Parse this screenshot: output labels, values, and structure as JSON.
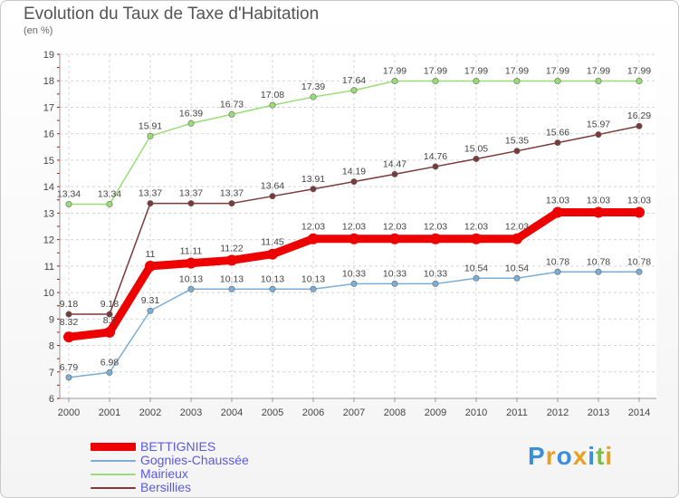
{
  "header": {
    "title": "Evolution du Taux de Taxe d'Habitation",
    "subtitle": "(en %)"
  },
  "logo": {
    "letters": [
      "P",
      "r",
      "o",
      "x",
      "i",
      "t",
      "i"
    ],
    "colors": [
      "#3a8fd8",
      "#e8a020",
      "#3a8fd8",
      "#e8a020",
      "#3a8fd8",
      "#7ac043",
      "#e8a020"
    ]
  },
  "chart_data": {
    "type": "line",
    "x": [
      "2000",
      "2001",
      "2002",
      "2003",
      "2004",
      "2005",
      "2006",
      "2007",
      "2008",
      "2009",
      "2010",
      "2011",
      "2012",
      "2013",
      "2014"
    ],
    "ylim": [
      6,
      19
    ],
    "yticks": [
      "6",
      "7",
      "8",
      "9",
      "10",
      "11",
      "12",
      "13",
      "14",
      "15",
      "16",
      "17",
      "18",
      "19"
    ],
    "grid": true,
    "legend_position": "bottom-left",
    "series": [
      {
        "name": "BETTIGNIES",
        "color": "#ee0000",
        "values": [
          8.32,
          8.5,
          11,
          11.11,
          11.22,
          11.45,
          12.03,
          12.03,
          12.03,
          12.03,
          12.03,
          12.03,
          13.03,
          13.03,
          13.03
        ],
        "labels": [
          "8.32",
          "8.5",
          "11",
          "11.11",
          "11.22",
          "11.45",
          "12.03",
          "12.03",
          "12.03",
          "12.03",
          "12.03",
          "12.03",
          "13.03",
          "13.03",
          "13.03"
        ]
      },
      {
        "name": "Gognies-Chaussée",
        "color": "#7aaed6",
        "values": [
          6.79,
          6.98,
          9.31,
          10.13,
          10.13,
          10.13,
          10.13,
          10.33,
          10.33,
          10.33,
          10.54,
          10.54,
          10.78,
          10.78,
          10.78
        ],
        "labels": [
          "6.79",
          "6.98",
          "9.31",
          "10.13",
          "10.13",
          "10.13",
          "10.13",
          "10.33",
          "10.33",
          "10.33",
          "10.54",
          "10.54",
          "10.78",
          "10.78",
          "10.78"
        ]
      },
      {
        "name": "Mairieux",
        "color": "#99dd77",
        "values": [
          13.34,
          13.34,
          15.91,
          16.39,
          16.73,
          17.08,
          17.39,
          17.64,
          17.99,
          17.99,
          17.99,
          17.99,
          17.99,
          17.99,
          17.99
        ],
        "labels": [
          "13.34",
          "13.34",
          "15.91",
          "16.39",
          "16.73",
          "17.08",
          "17.39",
          "17.64",
          "17.99",
          "17.99",
          "17.99",
          "17.99",
          "17.99",
          "17.99",
          "17.99"
        ]
      },
      {
        "name": "Bersillies",
        "color": "#7a3a3a",
        "values": [
          9.18,
          9.18,
          13.37,
          13.37,
          13.37,
          13.64,
          13.91,
          14.19,
          14.47,
          14.76,
          15.05,
          15.35,
          15.66,
          15.97,
          16.29
        ],
        "labels": [
          "9.18",
          "9.18",
          "13.37",
          "13.37",
          "13.37",
          "13.64",
          "13.91",
          "14.19",
          "14.47",
          "14.76",
          "15.05",
          "15.35",
          "15.66",
          "15.97",
          "16.29"
        ]
      }
    ]
  }
}
